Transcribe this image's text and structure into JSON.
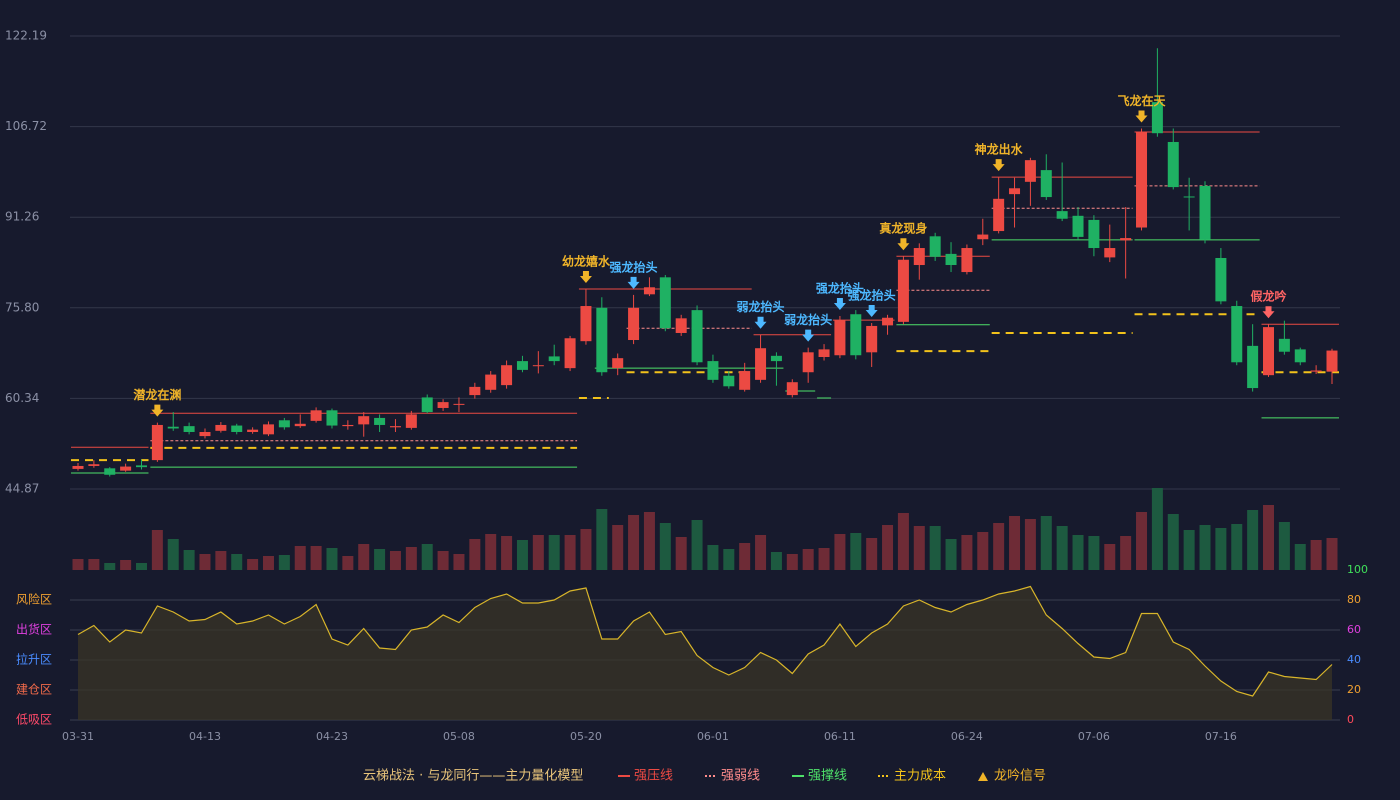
{
  "chart_data": [
    {
      "type": "candlestick",
      "categories": [
        "03-31",
        null,
        null,
        null,
        null,
        null,
        null,
        null,
        "04-13",
        null,
        null,
        null,
        null,
        null,
        null,
        null,
        "04-23",
        null,
        null,
        null,
        null,
        null,
        null,
        null,
        "05-08",
        null,
        null,
        null,
        null,
        null,
        null,
        null,
        "05-20",
        null,
        null,
        null,
        null,
        null,
        null,
        null,
        "06-01",
        null,
        null,
        null,
        null,
        null,
        null,
        null,
        "06-11",
        null,
        null,
        null,
        null,
        null,
        null,
        null,
        "06-24",
        null,
        null,
        null,
        null,
        null,
        null,
        null,
        "07-06",
        null,
        null,
        null,
        null,
        null,
        null,
        null,
        "07-16",
        null,
        null,
        null,
        null,
        null,
        null,
        null
      ],
      "open": [
        48.3,
        48.8,
        48.4,
        48.0,
        48.9,
        49.8,
        55.5,
        55.6,
        53.9,
        54.8,
        55.7,
        54.6,
        54.2,
        56.6,
        55.6,
        56.5,
        58.3,
        55.6,
        55.9,
        57.0,
        55.4,
        55.3,
        60.5,
        58.7,
        59.3,
        60.9,
        61.8,
        62.6,
        66.7,
        65.9,
        67.5,
        65.5,
        70.1,
        75.8,
        65.5,
        70.3,
        78.1,
        81.0,
        71.5,
        75.4,
        66.7,
        64.2,
        61.8,
        63.5,
        67.6,
        60.9,
        64.8,
        67.4,
        67.7,
        74.7,
        68.2,
        72.8,
        73.4,
        83.1,
        88.0,
        85.0,
        81.9,
        87.5,
        88.9,
        95.2,
        97.3,
        99.3,
        92.3,
        91.5,
        90.8,
        84.4,
        87.3,
        89.5,
        110.9,
        104.1,
        94.8,
        96.6,
        84.3,
        76.1,
        69.3,
        64.3,
        70.5,
        68.7,
        64.9,
        64.9
      ],
      "close": [
        48.8,
        49.1,
        47.3,
        48.7,
        48.6,
        55.8,
        55.2,
        54.6,
        54.6,
        55.8,
        54.6,
        55.0,
        55.9,
        55.4,
        56.0,
        58.3,
        55.7,
        55.8,
        57.3,
        55.8,
        55.6,
        57.6,
        58.0,
        59.7,
        59.4,
        62.3,
        64.4,
        66.0,
        65.2,
        66.0,
        66.7,
        70.6,
        76.1,
        64.8,
        67.2,
        75.8,
        79.3,
        72.3,
        74.0,
        66.5,
        63.5,
        62.4,
        65.0,
        68.9,
        66.7,
        63.1,
        68.2,
        68.7,
        73.7,
        67.7,
        72.7,
        74.1,
        84.0,
        86.0,
        84.5,
        83.1,
        86.0,
        88.3,
        94.4,
        96.2,
        101.0,
        94.7,
        91.0,
        87.9,
        86.0,
        86.0,
        87.7,
        105.8,
        105.6,
        96.4,
        94.7,
        87.4,
        76.9,
        66.5,
        62.1,
        72.5,
        68.3,
        66.5,
        65.1,
        68.5
      ],
      "high": [
        49.3,
        49.8,
        48.6,
        49.2,
        49.9,
        56.2,
        58.0,
        56.2,
        55.2,
        56.3,
        56.0,
        55.4,
        56.4,
        57.0,
        57.6,
        58.8,
        58.6,
        56.6,
        58.0,
        57.6,
        56.8,
        58.2,
        61.0,
        60.2,
        60.5,
        63.0,
        65.0,
        66.8,
        67.6,
        68.4,
        69.5,
        71.0,
        79.0,
        77.6,
        68.0,
        78.0,
        81.0,
        81.4,
        74.6,
        76.2,
        67.8,
        65.0,
        66.4,
        71.2,
        68.2,
        63.6,
        69.0,
        69.6,
        74.4,
        75.4,
        73.2,
        74.6,
        84.6,
        86.8,
        88.6,
        87.0,
        86.6,
        91.0,
        98.1,
        98.0,
        101.4,
        102.0,
        100.6,
        93.0,
        91.6,
        90.0,
        93.0,
        106.4,
        120.1,
        106.4,
        98.0,
        97.4,
        86.0,
        77.0,
        73.0,
        73.0,
        73.6,
        69.0,
        66.0,
        68.8
      ],
      "low": [
        48.0,
        48.5,
        47.0,
        47.8,
        48.2,
        49.5,
        54.8,
        54.2,
        53.5,
        54.5,
        54.2,
        54.3,
        53.9,
        55.0,
        55.3,
        56.2,
        55.2,
        55.0,
        53.8,
        54.6,
        54.6,
        55.0,
        57.8,
        58.2,
        58.0,
        60.3,
        61.3,
        62.0,
        64.8,
        64.6,
        66.0,
        65.0,
        69.5,
        64.2,
        64.3,
        69.6,
        77.8,
        71.8,
        71.0,
        66.0,
        63.0,
        62.0,
        61.5,
        63.0,
        62.5,
        60.5,
        63.0,
        66.8,
        67.2,
        67.0,
        65.7,
        71.2,
        73.0,
        80.6,
        83.8,
        81.9,
        81.5,
        86.5,
        88.5,
        89.5,
        93.2,
        94.2,
        90.6,
        87.4,
        84.6,
        83.6,
        80.8,
        89.0,
        105.0,
        96.0,
        89.0,
        86.8,
        76.4,
        66.0,
        61.5,
        64.0,
        67.8,
        66.0,
        64.5,
        62.8
      ],
      "up_color": "#ec4a43",
      "down_color": "#1fb163",
      "ylim": [
        44.87,
        122.19
      ],
      "yticks": [
        44.87,
        60.34,
        {
          "value": 75.8,
          "label": "75.80"
        },
        91.26,
        106.72,
        122.19
      ],
      "grid": true,
      "caption": "云梯战法 · 与龙同行——主力量化模型",
      "legend": [
        {
          "kind": "resist",
          "name": "强压线",
          "color": "#ec4a43",
          "dash": false
        },
        {
          "kind": "weak",
          "name": "强弱线",
          "color": "#ff8c8c",
          "dash": true
        },
        {
          "kind": "support",
          "name": "强撑线",
          "color": "#4ee06a",
          "dash": false
        },
        {
          "kind": "cost",
          "name": "主力成本",
          "color": "#f2c21b",
          "dash": true
        },
        {
          "kind": "signal",
          "name": "龙吟信号",
          "color": "#f0b429"
        }
      ],
      "levels": [
        {
          "kind": "resist",
          "from": 0,
          "to": 4,
          "value": 52.0
        },
        {
          "kind": "resist",
          "from": 5,
          "to": 31,
          "value": 57.8
        },
        {
          "kind": "resist",
          "from": 32,
          "to": 42,
          "value": 79.0
        },
        {
          "kind": "resist",
          "from": 43,
          "to": 47,
          "value": 71.2
        },
        {
          "kind": "resist",
          "from": 48,
          "to": 51,
          "value": 73.7
        },
        {
          "kind": "resist",
          "from": 52,
          "to": 57,
          "value": 84.6
        },
        {
          "kind": "resist",
          "from": 58,
          "to": 66,
          "value": 98.1
        },
        {
          "kind": "resist",
          "from": 67,
          "to": 74,
          "value": 105.8
        },
        {
          "kind": "resist",
          "from": 75,
          "to": 79,
          "value": 73.0
        },
        {
          "kind": "weak",
          "from": 5,
          "to": 31,
          "value": 53.1
        },
        {
          "kind": "weak",
          "from": 35,
          "to": 42,
          "value": 72.3
        },
        {
          "kind": "weak",
          "from": 52,
          "to": 57,
          "value": 78.8
        },
        {
          "kind": "weak",
          "from": 58,
          "to": 66,
          "value": 92.8
        },
        {
          "kind": "weak",
          "from": 67,
          "to": 74,
          "value": 96.6
        },
        {
          "kind": "support",
          "from": 0,
          "to": 4,
          "value": 47.6
        },
        {
          "kind": "support",
          "from": 5,
          "to": 31,
          "value": 48.6
        },
        {
          "kind": "support",
          "from": 33,
          "to": 44,
          "value": 65.5
        },
        {
          "kind": "support",
          "from": 45,
          "to": 46,
          "value": 61.6
        },
        {
          "kind": "support",
          "from": 47,
          "to": 47,
          "value": 60.4
        },
        {
          "kind": "support",
          "from": 52,
          "to": 57,
          "value": 72.9
        },
        {
          "kind": "support",
          "from": 58,
          "to": 66,
          "value": 87.4
        },
        {
          "kind": "support",
          "from": 67,
          "to": 74,
          "value": 87.4
        },
        {
          "kind": "support",
          "from": 75,
          "to": 79,
          "value": 57.0
        },
        {
          "kind": "cost",
          "from": 0,
          "to": 4,
          "value": 49.8
        },
        {
          "kind": "cost",
          "from": 5,
          "to": 31,
          "value": 51.9
        },
        {
          "kind": "cost",
          "from": 32,
          "to": 33,
          "value": 60.4
        },
        {
          "kind": "cost",
          "from": 35,
          "to": 42,
          "value": 64.8
        },
        {
          "kind": "cost",
          "from": 52,
          "to": 57,
          "value": 68.4
        },
        {
          "kind": "cost",
          "from": 58,
          "to": 66,
          "value": 71.5
        },
        {
          "kind": "cost",
          "from": 67,
          "to": 74,
          "value": 74.7
        },
        {
          "kind": "cost",
          "from": 75,
          "to": 79,
          "value": 64.8
        }
      ],
      "signals": [
        {
          "index": 5,
          "label": "潜龙在渊",
          "color": "#f0b429"
        },
        {
          "index": 32,
          "label": "幼龙嬉水",
          "color": "#f0b429"
        },
        {
          "index": 35,
          "label": "强龙抬头",
          "color": "#4db8ff"
        },
        {
          "index": 43,
          "label": "弱龙抬头",
          "color": "#4db8ff"
        },
        {
          "index": 46,
          "label": "弱龙抬头",
          "color": "#4db8ff"
        },
        {
          "index": 48,
          "label": "强龙抬头",
          "color": "#4db8ff"
        },
        {
          "index": 50,
          "label": "强龙抬头",
          "color": "#4db8ff"
        },
        {
          "index": 52,
          "label": "真龙现身",
          "color": "#f0b429"
        },
        {
          "index": 58,
          "label": "神龙出水",
          "color": "#f0b429"
        },
        {
          "index": 67,
          "label": "飞龙在天",
          "color": "#f0b429"
        },
        {
          "index": 75,
          "label": "假龙吟",
          "color": "#ff6464"
        }
      ]
    },
    {
      "type": "bar",
      "values": [
        11,
        11,
        7,
        10,
        7,
        40,
        31,
        20,
        16,
        19,
        16,
        11,
        14,
        15,
        24,
        24,
        22,
        14,
        26,
        21,
        19,
        23,
        26,
        19,
        16,
        31,
        36,
        34,
        30,
        35,
        35,
        35,
        41,
        61,
        45,
        55,
        58,
        47,
        33,
        50,
        25,
        21,
        27,
        35,
        18,
        16,
        21,
        22,
        36,
        37,
        32,
        45,
        57,
        44,
        44,
        31,
        35,
        38,
        47,
        54,
        51,
        54,
        44,
        35,
        34,
        26,
        34,
        58,
        82,
        56,
        40,
        45,
        42,
        46,
        60,
        65,
        48,
        26,
        30,
        32
      ],
      "up_color": "#6e2b36",
      "down_color": "#1d5a40"
    },
    {
      "type": "line",
      "values": [
        57,
        63,
        52,
        60,
        58,
        76,
        72,
        66,
        67,
        72,
        64,
        66,
        70,
        64,
        69,
        77,
        54,
        50,
        61,
        48,
        47,
        60,
        62,
        70,
        65,
        75,
        81,
        84,
        78,
        78,
        80,
        86,
        88,
        54,
        54,
        66,
        72,
        57,
        59,
        43,
        35,
        30,
        35,
        45,
        40,
        31,
        44,
        50,
        64,
        49,
        58,
        64,
        76,
        80,
        75,
        72,
        77,
        80,
        84,
        86,
        89,
        70,
        61,
        51,
        42,
        41,
        45,
        71,
        71,
        52,
        47,
        36,
        26,
        19,
        16,
        32,
        29,
        28,
        27,
        37
      ],
      "color": "#d8b52a",
      "ylim": [
        0,
        100
      ],
      "yticks": [
        0,
        20,
        40,
        60,
        80,
        100
      ],
      "ytick_colors": [
        "#ff4a5a",
        "#f0a030",
        "#4a8cff",
        "#e040e0",
        "#f0a030",
        "#3fe05a"
      ],
      "zones": [
        {
          "value": 80,
          "label": "风险区",
          "color": "#f0a030"
        },
        {
          "value": 60,
          "label": "出货区",
          "color": "#e040e0"
        },
        {
          "value": 40,
          "label": "拉升区",
          "color": "#4a8cff"
        },
        {
          "value": 20,
          "label": "建仓区",
          "color": "#f06a4a"
        },
        {
          "value": 0,
          "label": "低吸区",
          "color": "#ff4a6a"
        }
      ]
    }
  ]
}
